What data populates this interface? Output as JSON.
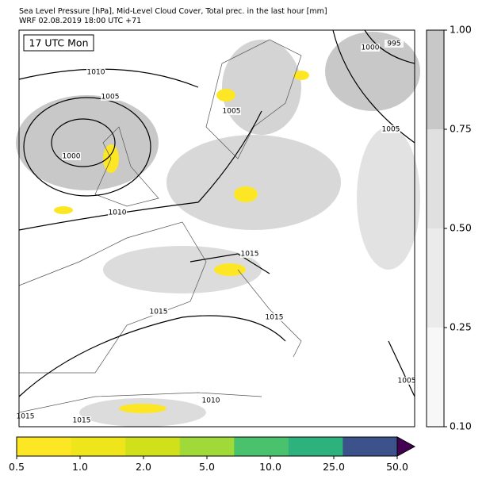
{
  "header": {
    "line1": "Sea Level Pressure [hPa], Mid-Level Cloud Cover, Total prec. in the last hour [mm]",
    "line2": "WRF 02.08.2019 18:00 UTC +71"
  },
  "time_label": "17 UTC Mon",
  "contour_labels": [
    "1010",
    "1005",
    "1000",
    "1010",
    "1005",
    "995",
    "1000",
    "1005",
    "1015",
    "1015",
    "1015",
    "1010",
    "1015",
    "1015",
    "1005"
  ],
  "cloud_colorbar": {
    "colors": [
      "#f7f7f7",
      "#ebebeb",
      "#e0e0e0",
      "#c8c8c8"
    ],
    "ticks": [
      "0.10",
      "0.25",
      "0.50",
      "0.75",
      "1.00"
    ]
  },
  "precip_colorbar": {
    "colors": [
      "#fde725",
      "#eee51b",
      "#d0e11c",
      "#a0da39",
      "#4ac16d",
      "#2db27d",
      "#3b528b"
    ],
    "extend_color": "#440154",
    "ticks": [
      "0.5",
      "1.0",
      "2.0",
      "5.0",
      "10.0",
      "25.0",
      "50.0"
    ]
  }
}
